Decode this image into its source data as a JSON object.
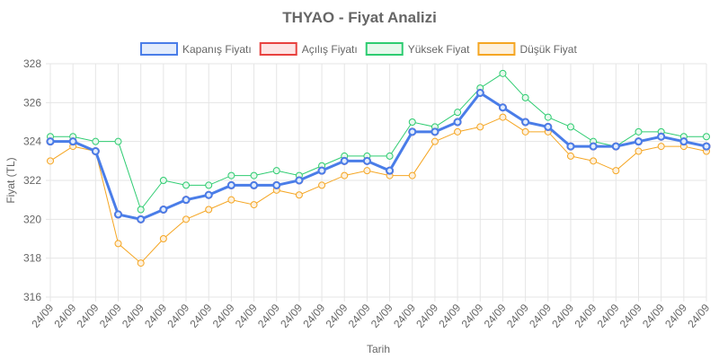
{
  "chart_data": {
    "type": "line",
    "title": "THYAO - Fiyat Analizi",
    "xlabel": "Tarih",
    "ylabel": "Fiyat (TL)",
    "ylim": [
      316,
      328
    ],
    "yticks": [
      316,
      318,
      320,
      322,
      324,
      326,
      328
    ],
    "grid": true,
    "legend_position": "top",
    "categories": [
      "24/09",
      "24/09",
      "24/09",
      "24/09",
      "24/09",
      "24/09",
      "24/09",
      "24/09",
      "24/09",
      "24/09",
      "24/09",
      "24/09",
      "24/09",
      "24/09",
      "24/09",
      "24/09",
      "24/09",
      "24/09",
      "24/09",
      "24/09",
      "24/09",
      "24/09",
      "24/09",
      "24/09",
      "24/09",
      "24/09",
      "24/09",
      "24/09",
      "24/09",
      "24/09"
    ],
    "series": [
      {
        "name": "Yüksek Fiyat",
        "color": "#2ecc71",
        "fill": "#e6f8ec",
        "width": 1,
        "values": [
          324.25,
          324.25,
          324,
          324,
          320.5,
          322,
          321.75,
          321.75,
          322.25,
          322.25,
          322.5,
          322.25,
          322.75,
          323.25,
          323.25,
          323.25,
          325,
          324.75,
          325.5,
          326.75,
          327.5,
          326.25,
          325.25,
          324.75,
          324,
          323.75,
          324.5,
          324.5,
          324.25,
          324.25
        ]
      },
      {
        "name": "Düşük Fiyat",
        "color": "#f5a623",
        "fill": "#fdf0dc",
        "width": 1,
        "values": [
          323,
          323.75,
          323.5,
          318.75,
          317.75,
          319,
          320,
          320.5,
          321,
          320.75,
          321.5,
          321.25,
          321.75,
          322.25,
          322.5,
          322.25,
          322.25,
          324,
          324.5,
          324.75,
          325.25,
          324.5,
          324.5,
          323.25,
          323,
          322.5,
          323.5,
          323.75,
          323.75,
          323.5
        ]
      },
      {
        "name": "Açılış Fiyatı",
        "color": "#e8413f",
        "fill": "#fde4e4",
        "width": 2,
        "values": [
          324,
          324,
          323.5,
          320.25,
          320,
          320.5,
          321,
          321.25,
          321.75,
          321.75,
          321.75,
          322,
          322.5,
          323,
          323,
          322.5,
          324.5,
          324.5,
          325,
          326.5,
          325.75,
          325,
          324.75,
          323.75,
          323.75,
          323.75,
          324,
          324.25,
          324,
          323.75
        ]
      },
      {
        "name": "Kapanış Fiyatı",
        "color": "#4a7de8",
        "fill": "#e3ecfc",
        "width": 3,
        "values": [
          324,
          324,
          323.5,
          320.25,
          320,
          320.5,
          321,
          321.25,
          321.75,
          321.75,
          321.75,
          322,
          322.5,
          323,
          323,
          322.5,
          324.5,
          324.5,
          325,
          326.5,
          325.75,
          325,
          324.75,
          323.75,
          323.75,
          323.75,
          324,
          324.25,
          324,
          323.75
        ]
      }
    ],
    "legend_order": [
      "Kapanış Fiyatı",
      "Açılış Fiyatı",
      "Yüksek Fiyat",
      "Düşük Fiyat"
    ]
  }
}
